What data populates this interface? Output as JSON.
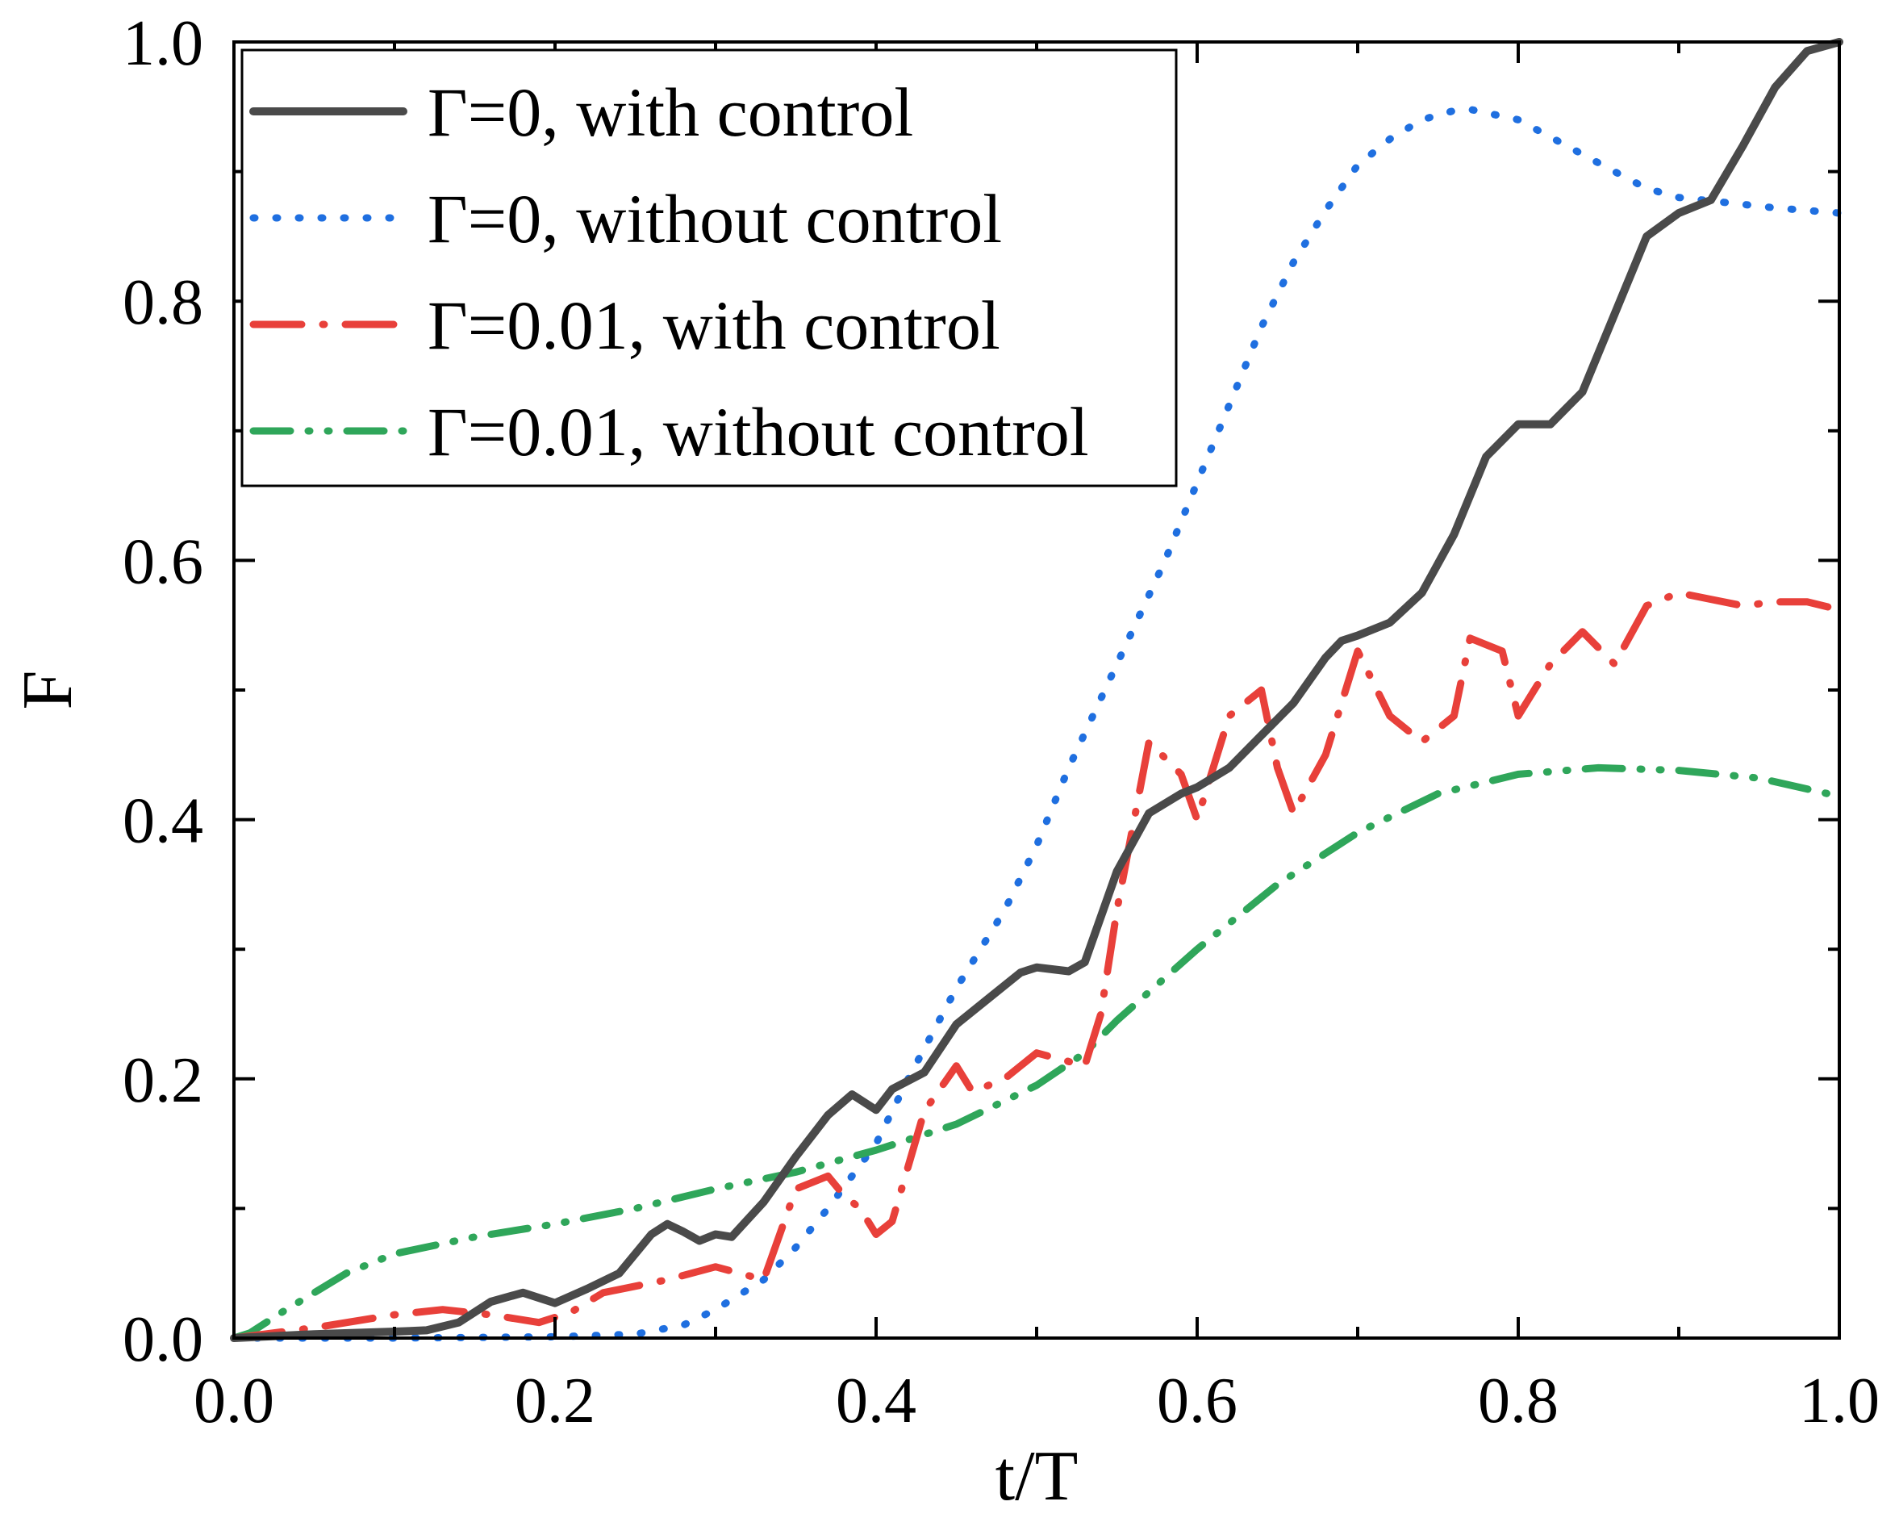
{
  "chart_data": {
    "type": "line",
    "title": "",
    "xlabel": "t/T",
    "ylabel": "F",
    "xlim": [
      0.0,
      1.0
    ],
    "ylim": [
      0.0,
      1.0
    ],
    "xticks": [
      "0.0",
      "0.2",
      "0.4",
      "0.6",
      "0.8",
      "1.0"
    ],
    "yticks": [
      "0.0",
      "0.2",
      "0.4",
      "0.6",
      "0.8",
      "1.0"
    ],
    "grid": false,
    "legend_position": "top-left",
    "series": [
      {
        "name": "Γ=0, with control",
        "color": "#4a4a4a",
        "style": "solid",
        "x": [
          0,
          0.05,
          0.1,
          0.12,
          0.14,
          0.16,
          0.18,
          0.2,
          0.22,
          0.24,
          0.26,
          0.27,
          0.28,
          0.29,
          0.3,
          0.31,
          0.33,
          0.35,
          0.37,
          0.385,
          0.4,
          0.41,
          0.43,
          0.45,
          0.47,
          0.49,
          0.5,
          0.52,
          0.53,
          0.55,
          0.57,
          0.59,
          0.6,
          0.62,
          0.64,
          0.66,
          0.68,
          0.69,
          0.7,
          0.72,
          0.74,
          0.76,
          0.78,
          0.8,
          0.82,
          0.84,
          0.86,
          0.88,
          0.9,
          0.92,
          0.94,
          0.96,
          0.98,
          1.0
        ],
        "y": [
          0,
          0.003,
          0.005,
          0.006,
          0.012,
          0.028,
          0.035,
          0.027,
          0.038,
          0.05,
          0.08,
          0.088,
          0.082,
          0.075,
          0.08,
          0.078,
          0.105,
          0.14,
          0.172,
          0.188,
          0.176,
          0.192,
          0.205,
          0.242,
          0.262,
          0.282,
          0.286,
          0.283,
          0.29,
          0.36,
          0.405,
          0.42,
          0.425,
          0.44,
          0.465,
          0.49,
          0.525,
          0.538,
          0.542,
          0.552,
          0.575,
          0.62,
          0.68,
          0.705,
          0.705,
          0.73,
          0.79,
          0.85,
          0.868,
          0.878,
          0.92,
          0.965,
          0.993,
          1.0
        ]
      },
      {
        "name": "Γ=0, without control",
        "color": "#1f6fe0",
        "style": "dotted",
        "x": [
          0,
          0.1,
          0.2,
          0.25,
          0.28,
          0.3,
          0.33,
          0.35,
          0.37,
          0.4,
          0.42,
          0.45,
          0.48,
          0.5,
          0.52,
          0.55,
          0.58,
          0.6,
          0.62,
          0.64,
          0.66,
          0.68,
          0.7,
          0.72,
          0.74,
          0.76,
          0.77,
          0.8,
          0.83,
          0.86,
          0.88,
          0.9,
          0.93,
          0.96,
          1.0
        ],
        "y": [
          0,
          0.0,
          0.001,
          0.003,
          0.01,
          0.022,
          0.045,
          0.07,
          0.1,
          0.15,
          0.2,
          0.27,
          0.33,
          0.38,
          0.44,
          0.52,
          0.6,
          0.66,
          0.72,
          0.78,
          0.83,
          0.87,
          0.905,
          0.925,
          0.94,
          0.947,
          0.948,
          0.94,
          0.92,
          0.9,
          0.887,
          0.88,
          0.876,
          0.872,
          0.868
        ]
      },
      {
        "name": "Γ=0.01, with control",
        "color": "#e8403a",
        "style": "dash-dot",
        "x": [
          0,
          0.05,
          0.1,
          0.13,
          0.16,
          0.19,
          0.21,
          0.23,
          0.27,
          0.3,
          0.33,
          0.35,
          0.37,
          0.38,
          0.39,
          0.4,
          0.41,
          0.43,
          0.45,
          0.46,
          0.48,
          0.5,
          0.53,
          0.54,
          0.55,
          0.57,
          0.59,
          0.6,
          0.62,
          0.64,
          0.65,
          0.66,
          0.68,
          0.7,
          0.72,
          0.74,
          0.76,
          0.77,
          0.79,
          0.8,
          0.82,
          0.84,
          0.86,
          0.88,
          0.9,
          0.92,
          0.94,
          0.96,
          0.98,
          1.0
        ],
        "y": [
          0,
          0.008,
          0.018,
          0.022,
          0.018,
          0.012,
          0.02,
          0.035,
          0.045,
          0.055,
          0.045,
          0.115,
          0.125,
          0.11,
          0.1,
          0.08,
          0.09,
          0.175,
          0.21,
          0.19,
          0.2,
          0.22,
          0.21,
          0.25,
          0.33,
          0.46,
          0.435,
          0.4,
          0.48,
          0.5,
          0.44,
          0.405,
          0.45,
          0.53,
          0.48,
          0.46,
          0.48,
          0.54,
          0.53,
          0.48,
          0.52,
          0.545,
          0.52,
          0.565,
          0.575,
          0.57,
          0.565,
          0.568,
          0.568,
          0.562
        ]
      },
      {
        "name": "Γ=0.01, without control",
        "color": "#2fa65a",
        "style": "dash-dot-dot",
        "x": [
          0,
          0.01,
          0.03,
          0.05,
          0.07,
          0.1,
          0.15,
          0.2,
          0.25,
          0.3,
          0.35,
          0.4,
          0.45,
          0.5,
          0.53,
          0.55,
          0.6,
          0.65,
          0.7,
          0.75,
          0.8,
          0.85,
          0.9,
          0.95,
          1.0
        ],
        "y": [
          0,
          0.004,
          0.02,
          0.035,
          0.05,
          0.065,
          0.078,
          0.088,
          0.1,
          0.115,
          0.128,
          0.145,
          0.165,
          0.195,
          0.22,
          0.245,
          0.3,
          0.35,
          0.39,
          0.42,
          0.435,
          0.44,
          0.438,
          0.432,
          0.418
        ]
      }
    ]
  }
}
